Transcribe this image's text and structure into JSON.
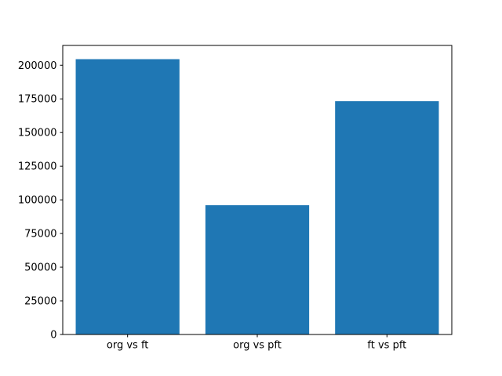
{
  "chart_data": {
    "type": "bar",
    "title": "",
    "xlabel": "",
    "ylabel": "",
    "categories": [
      "org vs ft",
      "org vs pft",
      "ft vs pft"
    ],
    "values": [
      204500,
      96000,
      173300
    ],
    "yticks": [
      0,
      25000,
      50000,
      75000,
      100000,
      125000,
      150000,
      175000,
      200000
    ],
    "ytick_labels": [
      "0",
      "25000",
      "50000",
      "75000",
      "100000",
      "125000",
      "150000",
      "175000",
      "200000"
    ],
    "ylim": [
      0,
      214700
    ],
    "bar_color": "#1f77b4",
    "axis_color": "#000000",
    "background_color": "#ffffff",
    "grid": false,
    "legend": null,
    "bar_width_fraction": 0.8
  }
}
